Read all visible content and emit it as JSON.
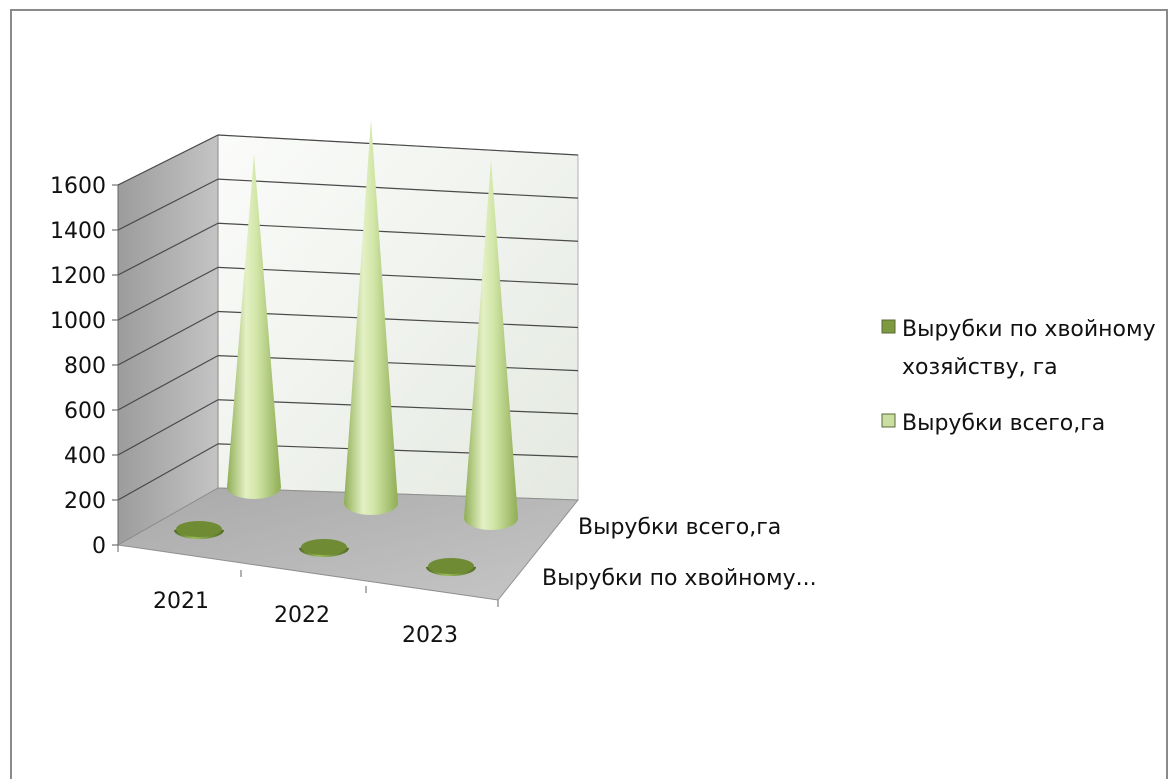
{
  "chart_data": {
    "type": "bar",
    "chart_style": "3d-cone",
    "title": "",
    "categories": [
      "2021",
      "2022",
      "2023"
    ],
    "depth_categories": [
      "Вырубки всего,га",
      "Вырубки по хвойному..."
    ],
    "series": [
      {
        "name": "Вырубки по хвойному хозяйству, га",
        "values": [
          20,
          20,
          100
        ],
        "color": "#7e9a3e"
      },
      {
        "name": "Вырубки всего,га",
        "values": [
          1300,
          1500,
          1400
        ],
        "color": "#c9dea0"
      }
    ],
    "y_ticks": [
      "0",
      "200",
      "400",
      "600",
      "800",
      "1000",
      "1200",
      "1400",
      "1600"
    ],
    "ylim": [
      0,
      1600
    ],
    "grid": true,
    "legend_position": "right",
    "colors": {
      "wall": "#eef1ec",
      "side_wall": "#a8a8a8",
      "floor": "#b4b4b4",
      "grid": "#4a4a4a"
    }
  },
  "legend": [
    {
      "label_lines": [
        "Вырубки по хвойному",
        "хозяйству, га"
      ]
    },
    {
      "label_lines": [
        "Вырубки всего,га"
      ]
    }
  ]
}
